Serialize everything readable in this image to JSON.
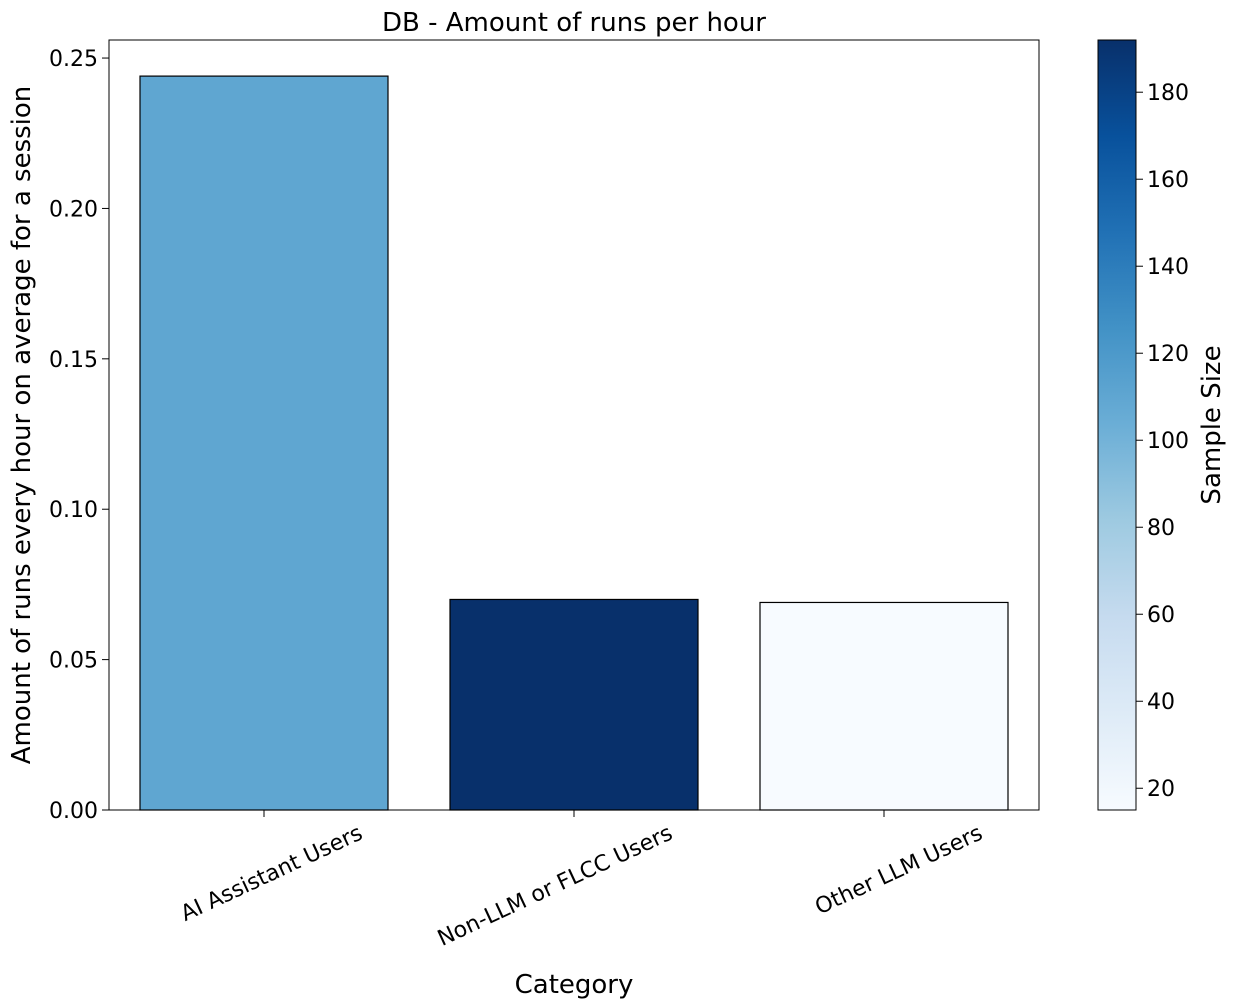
{
  "chart_data": {
    "type": "bar",
    "title": "DB - Amount of runs per hour",
    "xlabel": "Category",
    "ylabel": "Amount of runs every hour on average for a session",
    "categories": [
      "AI Assistant Users",
      "Non-LLM or FLCC Users",
      "Other LLM Users"
    ],
    "values": [
      0.244,
      0.07,
      0.069
    ],
    "sample_sizes": [
      110,
      192,
      15
    ],
    "ylim": [
      0,
      0.256
    ],
    "yticks": [
      0.0,
      0.05,
      0.1,
      0.15,
      0.2,
      0.25
    ],
    "ytick_labels": [
      "0.00",
      "0.05",
      "0.10",
      "0.15",
      "0.20",
      "0.25"
    ],
    "grid": false,
    "legend": "none",
    "colorbar": {
      "label": "Sample Size",
      "range": [
        15,
        192
      ],
      "ticks": [
        20,
        40,
        60,
        80,
        100,
        120,
        140,
        160,
        180
      ],
      "tick_labels": [
        "20",
        "40",
        "60",
        "80",
        "100",
        "120",
        "140",
        "160",
        "180"
      ],
      "colormap": "Blues",
      "colors": [
        "#f7fbff",
        "#deebf7",
        "#c6dbef",
        "#9ecae1",
        "#6baed6",
        "#4292c6",
        "#2171b5",
        "#08519c",
        "#08306b"
      ]
    },
    "bar_edge_color": "#000000"
  }
}
